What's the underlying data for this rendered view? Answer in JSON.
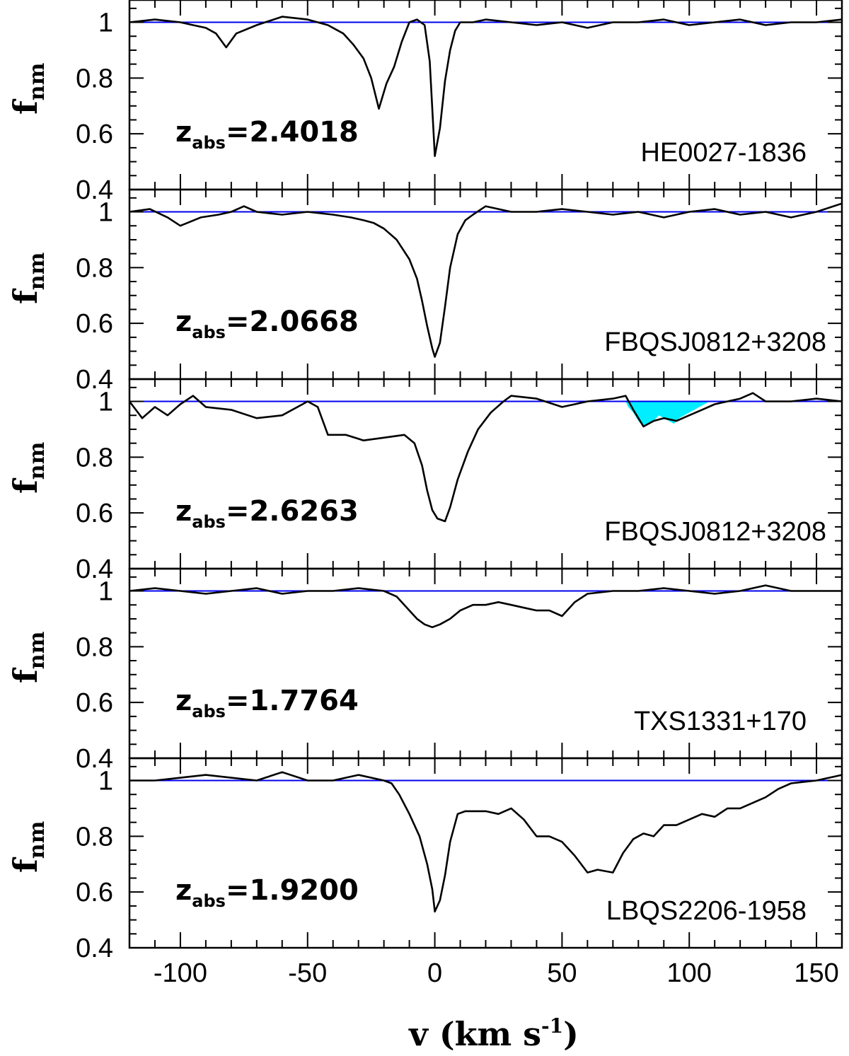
{
  "chart_data": {
    "type": "line",
    "x_axis": {
      "label": "v",
      "unit_text": "(km s",
      "unit_exponent": "-1",
      "unit_close": ")",
      "range": [
        -120,
        160
      ],
      "tick_labels": [
        "-100",
        "-50",
        "0",
        "50",
        "100",
        "150"
      ],
      "tick_values": [
        -100,
        -50,
        0,
        50,
        100,
        150
      ]
    },
    "y_axis": {
      "label": "f",
      "label_subscript": "nm",
      "range": [
        0.4,
        1.08
      ],
      "tick_labels": [
        "0.4",
        "0.6",
        "0.8",
        "1"
      ],
      "tick_values": [
        0.4,
        0.6,
        0.8,
        1.0
      ]
    },
    "continuum_level": 1.0,
    "colors": {
      "continuum": "#0000ee",
      "spectrum": "#000000",
      "shaded_feature": "#00eeff"
    },
    "panels": [
      {
        "z_prefix": "z",
        "z_subscript": "abs",
        "z_value": "=2.4018",
        "qso": "HE0027-1836",
        "show_bottom_tick_labels": false,
        "show_04_label": true,
        "spectrum": [
          [
            -120,
            1.0
          ],
          [
            -110,
            1.01
          ],
          [
            -100,
            1.0
          ],
          [
            -95,
            0.99
          ],
          [
            -90,
            0.98
          ],
          [
            -86,
            0.96
          ],
          [
            -82,
            0.91
          ],
          [
            -78,
            0.96
          ],
          [
            -70,
            0.99
          ],
          [
            -60,
            1.02
          ],
          [
            -50,
            1.01
          ],
          [
            -42,
            0.99
          ],
          [
            -36,
            0.96
          ],
          [
            -32,
            0.92
          ],
          [
            -28,
            0.87
          ],
          [
            -25,
            0.8
          ],
          [
            -22,
            0.69
          ],
          [
            -19,
            0.78
          ],
          [
            -16,
            0.84
          ],
          [
            -13,
            0.93
          ],
          [
            -10,
            1.0
          ],
          [
            -7,
            1.01
          ],
          [
            -4,
            0.99
          ],
          [
            -2,
            0.86
          ],
          [
            0,
            0.52
          ],
          [
            2,
            0.62
          ],
          [
            4,
            0.79
          ],
          [
            6,
            0.9
          ],
          [
            8,
            0.97
          ],
          [
            10,
            1.0
          ],
          [
            15,
            1.0
          ],
          [
            20,
            1.01
          ],
          [
            30,
            1.0
          ],
          [
            40,
            0.99
          ],
          [
            50,
            1.0
          ],
          [
            60,
            0.98
          ],
          [
            70,
            1.0
          ],
          [
            80,
            1.0
          ],
          [
            90,
            1.01
          ],
          [
            100,
            0.99
          ],
          [
            110,
            1.0
          ],
          [
            120,
            1.01
          ],
          [
            130,
            0.99
          ],
          [
            140,
            1.0
          ],
          [
            150,
            1.0
          ],
          [
            160,
            1.01
          ]
        ],
        "shaded_region": []
      },
      {
        "z_prefix": "z",
        "z_subscript": "abs",
        "z_value": "=2.0668",
        "qso": "FBQSJ0812+3208",
        "show_bottom_tick_labels": false,
        "show_04_label": true,
        "spectrum": [
          [
            -120,
            1.0
          ],
          [
            -112,
            1.01
          ],
          [
            -105,
            0.98
          ],
          [
            -100,
            0.95
          ],
          [
            -92,
            0.98
          ],
          [
            -85,
            0.99
          ],
          [
            -80,
            1.0
          ],
          [
            -75,
            1.02
          ],
          [
            -70,
            1.0
          ],
          [
            -60,
            0.99
          ],
          [
            -50,
            1.0
          ],
          [
            -40,
            0.99
          ],
          [
            -33,
            0.98
          ],
          [
            -28,
            0.97
          ],
          [
            -24,
            0.96
          ],
          [
            -20,
            0.94
          ],
          [
            -15,
            0.9
          ],
          [
            -10,
            0.83
          ],
          [
            -7,
            0.76
          ],
          [
            -5,
            0.68
          ],
          [
            -3,
            0.59
          ],
          [
            -1,
            0.51
          ],
          [
            0,
            0.48
          ],
          [
            2,
            0.53
          ],
          [
            4,
            0.66
          ],
          [
            6,
            0.8
          ],
          [
            9,
            0.92
          ],
          [
            12,
            0.97
          ],
          [
            15,
            0.99
          ],
          [
            20,
            1.02
          ],
          [
            30,
            1.0
          ],
          [
            40,
            1.0
          ],
          [
            50,
            1.01
          ],
          [
            60,
            1.0
          ],
          [
            70,
            0.99
          ],
          [
            80,
            1.0
          ],
          [
            90,
            0.98
          ],
          [
            100,
            1.0
          ],
          [
            110,
            1.01
          ],
          [
            120,
            0.99
          ],
          [
            130,
            1.0
          ],
          [
            140,
            0.98
          ],
          [
            150,
            1.0
          ],
          [
            160,
            1.03
          ]
        ],
        "shaded_region": []
      },
      {
        "z_prefix": "z",
        "z_subscript": "abs",
        "z_value": "=2.6263",
        "qso": "FBQSJ0812+3208",
        "show_bottom_tick_labels": false,
        "show_04_label": true,
        "spectrum": [
          [
            -120,
            1.0
          ],
          [
            -115,
            0.94
          ],
          [
            -110,
            0.98
          ],
          [
            -105,
            0.95
          ],
          [
            -100,
            0.99
          ],
          [
            -95,
            1.02
          ],
          [
            -90,
            0.98
          ],
          [
            -80,
            0.97
          ],
          [
            -70,
            0.94
          ],
          [
            -60,
            0.95
          ],
          [
            -52,
            0.99
          ],
          [
            -50,
            1.0
          ],
          [
            -46,
            0.98
          ],
          [
            -42,
            0.88
          ],
          [
            -35,
            0.88
          ],
          [
            -28,
            0.86
          ],
          [
            -20,
            0.87
          ],
          [
            -12,
            0.88
          ],
          [
            -8,
            0.85
          ],
          [
            -5,
            0.77
          ],
          [
            -3,
            0.68
          ],
          [
            -1,
            0.61
          ],
          [
            1,
            0.58
          ],
          [
            4,
            0.57
          ],
          [
            6,
            0.62
          ],
          [
            9,
            0.72
          ],
          [
            13,
            0.82
          ],
          [
            17,
            0.9
          ],
          [
            22,
            0.96
          ],
          [
            27,
            1.0
          ],
          [
            30,
            1.02
          ],
          [
            40,
            1.01
          ],
          [
            50,
            0.98
          ],
          [
            55,
            0.99
          ],
          [
            60,
            1.0
          ],
          [
            70,
            1.01
          ],
          [
            75,
            1.02
          ],
          [
            78,
            0.97
          ],
          [
            82,
            0.91
          ],
          [
            86,
            0.93
          ],
          [
            90,
            0.94
          ],
          [
            95,
            0.93
          ],
          [
            100,
            0.95
          ],
          [
            105,
            0.97
          ],
          [
            110,
            0.99
          ],
          [
            120,
            1.01
          ],
          [
            125,
            1.03
          ],
          [
            130,
            1.0
          ],
          [
            140,
            1.0
          ],
          [
            150,
            1.01
          ],
          [
            160,
            1.0
          ]
        ],
        "shaded_region": [
          [
            75,
            1.0
          ],
          [
            76,
            0.98
          ],
          [
            78,
            0.96
          ],
          [
            80,
            0.93
          ],
          [
            82,
            0.91
          ],
          [
            84,
            0.92
          ],
          [
            86,
            0.93
          ],
          [
            88,
            0.95
          ],
          [
            90,
            0.94
          ],
          [
            92,
            0.93
          ],
          [
            94,
            0.92
          ],
          [
            96,
            0.94
          ],
          [
            98,
            0.95
          ],
          [
            100,
            0.96
          ],
          [
            102,
            0.97
          ],
          [
            104,
            0.98
          ],
          [
            106,
            0.99
          ],
          [
            108,
            1.0
          ]
        ]
      },
      {
        "z_prefix": "z",
        "z_subscript": "abs",
        "z_value": "=1.7764",
        "qso": "TXS1331+170",
        "show_bottom_tick_labels": false,
        "show_04_label": true,
        "spectrum": [
          [
            -120,
            1.0
          ],
          [
            -110,
            1.01
          ],
          [
            -100,
            1.0
          ],
          [
            -90,
            0.99
          ],
          [
            -80,
            1.0
          ],
          [
            -70,
            1.01
          ],
          [
            -60,
            0.99
          ],
          [
            -50,
            1.0
          ],
          [
            -40,
            1.0
          ],
          [
            -30,
            1.01
          ],
          [
            -20,
            1.0
          ],
          [
            -15,
            0.98
          ],
          [
            -10,
            0.93
          ],
          [
            -7,
            0.9
          ],
          [
            -4,
            0.88
          ],
          [
            -1,
            0.87
          ],
          [
            2,
            0.88
          ],
          [
            6,
            0.9
          ],
          [
            10,
            0.93
          ],
          [
            15,
            0.95
          ],
          [
            20,
            0.95
          ],
          [
            25,
            0.96
          ],
          [
            30,
            0.95
          ],
          [
            35,
            0.94
          ],
          [
            40,
            0.93
          ],
          [
            45,
            0.93
          ],
          [
            50,
            0.91
          ],
          [
            55,
            0.96
          ],
          [
            60,
            0.99
          ],
          [
            70,
            1.0
          ],
          [
            80,
            1.0
          ],
          [
            90,
            1.01
          ],
          [
            100,
            1.0
          ],
          [
            110,
            0.99
          ],
          [
            120,
            1.0
          ],
          [
            130,
            1.02
          ],
          [
            140,
            1.0
          ],
          [
            150,
            1.0
          ],
          [
            160,
            1.0
          ]
        ],
        "shaded_region": []
      },
      {
        "z_prefix": "z",
        "z_subscript": "abs",
        "z_value": "=1.9200",
        "qso": "LBQS2206-1958",
        "show_bottom_tick_labels": true,
        "show_04_label": true,
        "spectrum": [
          [
            -120,
            1.0
          ],
          [
            -110,
            1.0
          ],
          [
            -100,
            1.01
          ],
          [
            -90,
            1.02
          ],
          [
            -80,
            1.01
          ],
          [
            -70,
            1.0
          ],
          [
            -60,
            1.03
          ],
          [
            -50,
            1.0
          ],
          [
            -40,
            1.0
          ],
          [
            -30,
            1.02
          ],
          [
            -20,
            1.0
          ],
          [
            -17,
            0.99
          ],
          [
            -14,
            0.95
          ],
          [
            -10,
            0.88
          ],
          [
            -6,
            0.8
          ],
          [
            -3,
            0.7
          ],
          [
            -1,
            0.61
          ],
          [
            0,
            0.53
          ],
          [
            2,
            0.57
          ],
          [
            4,
            0.66
          ],
          [
            6,
            0.78
          ],
          [
            9,
            0.88
          ],
          [
            12,
            0.89
          ],
          [
            15,
            0.89
          ],
          [
            20,
            0.89
          ],
          [
            25,
            0.88
          ],
          [
            30,
            0.9
          ],
          [
            35,
            0.86
          ],
          [
            40,
            0.8
          ],
          [
            45,
            0.8
          ],
          [
            50,
            0.78
          ],
          [
            55,
            0.73
          ],
          [
            60,
            0.67
          ],
          [
            64,
            0.68
          ],
          [
            70,
            0.67
          ],
          [
            74,
            0.74
          ],
          [
            78,
            0.79
          ],
          [
            82,
            0.81
          ],
          [
            86,
            0.8
          ],
          [
            90,
            0.84
          ],
          [
            95,
            0.84
          ],
          [
            100,
            0.86
          ],
          [
            105,
            0.88
          ],
          [
            110,
            0.87
          ],
          [
            115,
            0.9
          ],
          [
            120,
            0.9
          ],
          [
            125,
            0.92
          ],
          [
            130,
            0.94
          ],
          [
            135,
            0.97
          ],
          [
            140,
            0.99
          ],
          [
            150,
            1.0
          ],
          [
            160,
            1.02
          ]
        ],
        "shaded_region": []
      }
    ]
  }
}
